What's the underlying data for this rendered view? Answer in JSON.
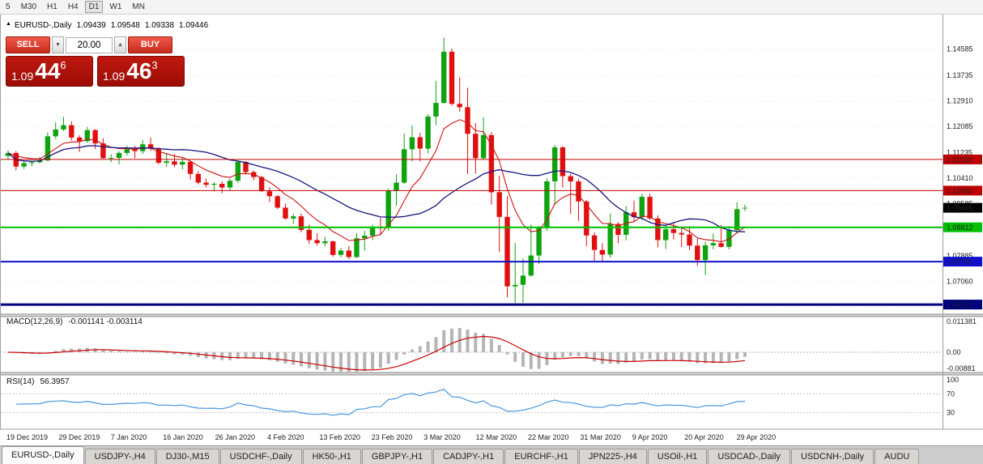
{
  "toolbar": {
    "timeframes": [
      "5",
      "M30",
      "H1",
      "H4",
      "D1",
      "W1",
      "MN"
    ],
    "active": "D1"
  },
  "icons": {
    "collapse_icon": "▲",
    "volume_down_icon": "▼",
    "volume_up_icon": "▲"
  },
  "info_line": {
    "symbol": "EURUSD-,Daily",
    "open": "1.09439",
    "high": "1.09548",
    "low": "1.09338",
    "close": "1.09446"
  },
  "trade_panel": {
    "sell_label": "SELL",
    "buy_label": "BUY",
    "volume": "20.00",
    "sell_price": {
      "prefix": "1.09",
      "big": "44",
      "sup": "6"
    },
    "buy_price": {
      "prefix": "1.09",
      "big": "46",
      "sup": "3"
    }
  },
  "indicators": {
    "macd_label": "MACD(12,26,9)",
    "macd_values": "-0.001141 -0.003114",
    "macd_scale": {
      "max": "0.011381",
      "zero": "0.00",
      "min": "-0.00881"
    },
    "rsi_label": "RSI(14)",
    "rsi_value": "56.3957",
    "rsi_scale": {
      "top": "100",
      "upper": "70",
      "lower": "30"
    }
  },
  "axes": {
    "price_labels": [
      "1.14585",
      "1.13735",
      "1.12910",
      "1.12085",
      "1.11235",
      "1.10410",
      "1.09585",
      "1.08760",
      "1.07885",
      "1.07060",
      "1.06235"
    ],
    "date_labels": [
      "19 Dec 2019",
      "29 Dec 2019",
      "7 Jan 2020",
      "16 Jan 2020",
      "26 Jan 2020",
      "4 Feb 2020",
      "13 Feb 2020",
      "23 Feb 2020",
      "3 Mar 2020",
      "12 Mar 2020",
      "22 Mar 2020",
      "31 Mar 2020",
      "9 Apr 2020",
      "20 Apr 2020",
      "29 Apr 2020"
    ]
  },
  "levels": [
    {
      "price": 1.1101,
      "label": "1.11010",
      "color": "#C00000",
      "width": 1
    },
    {
      "price": 1.1,
      "label": "1.10000",
      "color": "#C00000",
      "width": 1
    },
    {
      "price": 1.09446,
      "label": "1.09446",
      "color": "#000000",
      "width": 0
    },
    {
      "price": 1.08812,
      "label": "1.08812",
      "color": "#00C000",
      "width": 2
    },
    {
      "price": 1.07701,
      "label": "1.07701",
      "color": "#1010CC",
      "width": 2
    },
    {
      "price": 1.06312,
      "label": "1.06312",
      "color": "#000080",
      "width": 3
    }
  ],
  "chart_data": {
    "type": "candlestick",
    "symbol": "EURUSD",
    "timeframe": "Daily",
    "title": "EURUSD-,Daily",
    "ylim": [
      1.06,
      1.157
    ],
    "style": {
      "candle_up": "#0FA30F",
      "candle_down": "#E01010",
      "ma_fast": "#CC1111",
      "ma_slow": "#151580",
      "macd_hist": "#B5B5B5",
      "macd_signal": "#CC0000",
      "rsi_line": "#4A97DC"
    },
    "overlays": [
      {
        "name": "ma-fast",
        "period": 8
      },
      {
        "name": "ma-slow",
        "period": 21
      }
    ],
    "macd_params": {
      "fast": 12,
      "slow": 26,
      "signal": 9
    },
    "rsi_params": {
      "period": 14
    },
    "candles_ohlc": [
      [
        1.1112,
        1.113,
        1.1102,
        1.1122
      ],
      [
        1.1122,
        1.1128,
        1.1066,
        1.1078
      ],
      [
        1.1078,
        1.1096,
        1.107,
        1.1089
      ],
      [
        1.1089,
        1.1094,
        1.1079,
        1.1092
      ],
      [
        1.1092,
        1.1109,
        1.1088,
        1.1098
      ],
      [
        1.1098,
        1.1188,
        1.1095,
        1.1176
      ],
      [
        1.1176,
        1.1221,
        1.1167,
        1.1198
      ],
      [
        1.1198,
        1.1239,
        1.1193,
        1.1212
      ],
      [
        1.1212,
        1.1224,
        1.1162,
        1.1172
      ],
      [
        1.1172,
        1.1179,
        1.1125,
        1.116
      ],
      [
        1.116,
        1.1206,
        1.1155,
        1.1196
      ],
      [
        1.1196,
        1.1199,
        1.1135,
        1.1153
      ],
      [
        1.1153,
        1.117,
        1.1103,
        1.1105
      ],
      [
        1.1105,
        1.1118,
        1.1092,
        1.1106
      ],
      [
        1.1106,
        1.1128,
        1.1085,
        1.1122
      ],
      [
        1.1122,
        1.1145,
        1.1113,
        1.1134
      ],
      [
        1.1134,
        1.1145,
        1.1105,
        1.1128
      ],
      [
        1.1128,
        1.1163,
        1.1119,
        1.115
      ],
      [
        1.115,
        1.1172,
        1.1128,
        1.1136
      ],
      [
        1.1136,
        1.1141,
        1.1085,
        1.109
      ],
      [
        1.109,
        1.1119,
        1.1077,
        1.1095
      ],
      [
        1.1095,
        1.1118,
        1.1076,
        1.1084
      ],
      [
        1.1084,
        1.1109,
        1.1069,
        1.1093
      ],
      [
        1.1093,
        1.1095,
        1.1036,
        1.1054
      ],
      [
        1.1054,
        1.1063,
        1.102,
        1.1026
      ],
      [
        1.1026,
        1.1039,
        1.101,
        1.1019
      ],
      [
        1.1019,
        1.1027,
        1.0998,
        1.1022
      ],
      [
        1.1022,
        1.103,
        1.0992,
        1.101
      ],
      [
        1.101,
        1.1039,
        1.1001,
        1.1032
      ],
      [
        1.1032,
        1.1096,
        1.1025,
        1.1093
      ],
      [
        1.1093,
        1.1095,
        1.1052,
        1.106
      ],
      [
        1.106,
        1.1065,
        1.1033,
        1.1044
      ],
      [
        1.1044,
        1.1048,
        1.0995,
        1.0998
      ],
      [
        1.0998,
        1.1011,
        1.0963,
        1.0982
      ],
      [
        1.0982,
        1.0986,
        1.0941,
        1.0945
      ],
      [
        1.0945,
        1.0958,
        1.0906,
        1.091
      ],
      [
        1.091,
        1.0925,
        1.0892,
        1.0917
      ],
      [
        1.0917,
        1.0926,
        1.0865,
        1.0873
      ],
      [
        1.0873,
        1.089,
        1.0827,
        1.084
      ],
      [
        1.084,
        1.0862,
        1.0822,
        1.083
      ],
      [
        1.083,
        1.0851,
        1.082,
        1.0836
      ],
      [
        1.0836,
        1.0838,
        1.0786,
        1.0792
      ],
      [
        1.0792,
        1.0815,
        1.0784,
        1.0806
      ],
      [
        1.0806,
        1.0821,
        1.0778,
        1.0785
      ],
      [
        1.0785,
        1.0862,
        1.0782,
        1.0846
      ],
      [
        1.0846,
        1.087,
        1.0805,
        1.0854
      ],
      [
        1.0854,
        1.089,
        1.084,
        1.0881
      ],
      [
        1.0881,
        1.0912,
        1.0855,
        1.088
      ],
      [
        1.088,
        1.1006,
        1.087,
        1.0999
      ],
      [
        1.0999,
        1.1053,
        1.0951,
        1.1026
      ],
      [
        1.1026,
        1.1185,
        1.1021,
        1.1134
      ],
      [
        1.1134,
        1.1212,
        1.1095,
        1.1173
      ],
      [
        1.1173,
        1.1187,
        1.1095,
        1.1136
      ],
      [
        1.1136,
        1.1248,
        1.112,
        1.124
      ],
      [
        1.124,
        1.1355,
        1.1212,
        1.1284
      ],
      [
        1.1284,
        1.1495,
        1.1282,
        1.145
      ],
      [
        1.145,
        1.146,
        1.1275,
        1.1281
      ],
      [
        1.1281,
        1.1367,
        1.1256,
        1.127
      ],
      [
        1.127,
        1.1333,
        1.1054,
        1.1184
      ],
      [
        1.1184,
        1.1219,
        1.1055,
        1.1105
      ],
      [
        1.1105,
        1.1237,
        1.1101,
        1.118
      ],
      [
        1.118,
        1.1189,
        1.0955,
        1.0995
      ],
      [
        1.0995,
        1.1048,
        1.0802,
        1.0915
      ],
      [
        1.0915,
        1.0982,
        1.0655,
        1.069
      ],
      [
        1.069,
        1.083,
        1.0636,
        1.0695
      ],
      [
        1.0695,
        1.078,
        1.0637,
        1.0725
      ],
      [
        1.0725,
        1.089,
        1.0722,
        1.079
      ],
      [
        1.079,
        1.0885,
        1.0762,
        1.088
      ],
      [
        1.088,
        1.104,
        1.087,
        1.103
      ],
      [
        1.103,
        1.1148,
        1.0953,
        1.114
      ],
      [
        1.114,
        1.1144,
        1.101,
        1.1047
      ],
      [
        1.1047,
        1.1055,
        1.0925,
        1.103
      ],
      [
        1.103,
        1.1038,
        1.0902,
        1.0965
      ],
      [
        1.0965,
        1.097,
        1.082,
        1.0855
      ],
      [
        1.0855,
        1.0865,
        1.0773,
        1.0808
      ],
      [
        1.0808,
        1.083,
        1.0768,
        1.0793
      ],
      [
        1.0793,
        1.0926,
        1.0783,
        1.0892
      ],
      [
        1.0892,
        1.0898,
        1.083,
        1.0857
      ],
      [
        1.0857,
        1.095,
        1.0839,
        1.093
      ],
      [
        1.093,
        1.0968,
        1.0898,
        1.0914
      ],
      [
        1.0914,
        1.099,
        1.0905,
        1.098
      ],
      [
        1.098,
        1.099,
        1.0905,
        1.091
      ],
      [
        1.091,
        1.092,
        1.0816,
        1.084
      ],
      [
        1.084,
        1.089,
        1.0811,
        1.0875
      ],
      [
        1.0875,
        1.0897,
        1.0842,
        1.0863
      ],
      [
        1.0863,
        1.088,
        1.0817,
        1.0858
      ],
      [
        1.0858,
        1.0885,
        1.0808,
        1.0822
      ],
      [
        1.0822,
        1.0845,
        1.0756,
        1.0775
      ],
      [
        1.0775,
        1.0835,
        1.0727,
        1.0823
      ],
      [
        1.0823,
        1.0861,
        1.081,
        1.083
      ],
      [
        1.083,
        1.0889,
        1.0816,
        1.0818
      ],
      [
        1.0818,
        1.0885,
        1.081,
        1.0872
      ],
      [
        1.0872,
        1.0962,
        1.086,
        1.094
      ],
      [
        1.09439,
        1.09548,
        1.09338,
        1.09446
      ]
    ]
  },
  "tabs": {
    "active": 0,
    "items": [
      "EURUSD-,Daily",
      "USDJPY-,H4",
      "DJ30-,M15",
      "USDCHF-,Daily",
      "HK50-,H1",
      "GBPJPY-,H1",
      "CADJPY-,H1",
      "EURCHF-,H1",
      "JPN225-,H4",
      "USOil-,H1",
      "USDCAD-,Daily",
      "USDCNH-,Daily",
      "AUDU"
    ]
  }
}
